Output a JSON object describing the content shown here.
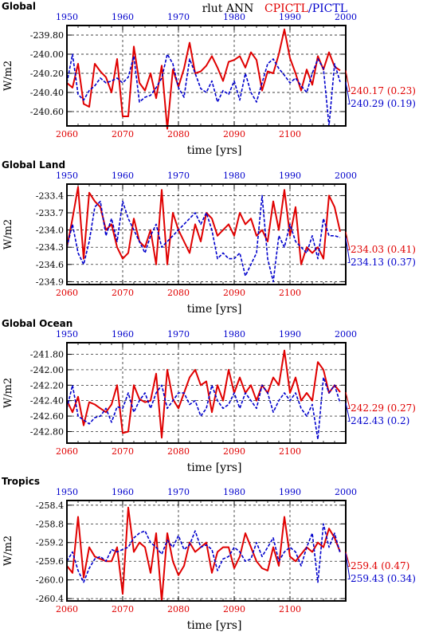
{
  "header": {
    "variable": "rlut ANN",
    "legend_exp": "CPICTL",
    "legend_sep": "/",
    "legend_ctl": "PICTL"
  },
  "colors": {
    "exp": "#e00000",
    "ctl": "#0000cc"
  },
  "chart_data": [
    {
      "type": "line",
      "title": "Global",
      "ylabel": "W/m2",
      "xlabel": "time [yrs]",
      "bottom_ticks": [
        "2060",
        "2070",
        "2080",
        "2090",
        "2100"
      ],
      "top_ticks": [
        "1950",
        "1960",
        "1970",
        "1980",
        "1990",
        "2000"
      ],
      "y_ticks": [
        "-239.80",
        "-240.00",
        "-240.20",
        "-240.40",
        "-240.60"
      ],
      "y_tick_values": [
        -239.8,
        -240.0,
        -240.2,
        -240.4,
        -240.6
      ],
      "ylim": [
        -240.75,
        -239.7
      ],
      "grid": true,
      "x": [
        2060,
        2061,
        2062,
        2063,
        2064,
        2065,
        2066,
        2067,
        2068,
        2069,
        2070,
        2071,
        2072,
        2073,
        2074,
        2075,
        2076,
        2077,
        2078,
        2079,
        2080,
        2081,
        2082,
        2083,
        2084,
        2085,
        2086,
        2087,
        2088,
        2089,
        2090,
        2091,
        2092,
        2093,
        2094,
        2095,
        2096,
        2097,
        2098,
        2099,
        2100,
        2101,
        2102,
        2103,
        2104,
        2105,
        2106,
        2107,
        2108,
        2109
      ],
      "series": [
        {
          "name": "CPICTL",
          "color": "#e00000",
          "style": "solid",
          "values": [
            -240.3,
            -240.35,
            -240.1,
            -240.52,
            -240.55,
            -240.1,
            -240.18,
            -240.24,
            -240.4,
            -240.05,
            -240.65,
            -240.65,
            -239.92,
            -240.3,
            -240.38,
            -240.2,
            -240.46,
            -240.12,
            -240.78,
            -240.16,
            -240.34,
            -240.15,
            -239.88,
            -240.2,
            -240.18,
            -240.12,
            -240.02,
            -240.14,
            -240.28,
            -240.08,
            -240.06,
            -240.02,
            -240.14,
            -239.98,
            -240.06,
            -240.38,
            -240.18,
            -240.2,
            -240.0,
            -239.74,
            -240.04,
            -240.2,
            -240.38,
            -240.16,
            -240.32,
            -240.02,
            -240.16,
            -239.98,
            -240.13,
            -240.17
          ],
          "end_label": "-240.17 (0.23)"
        },
        {
          "name": "PICTL",
          "color": "#0000cc",
          "style": "dashed",
          "values": [
            -240.3,
            -240.0,
            -240.42,
            -240.48,
            -240.38,
            -240.33,
            -240.25,
            -240.3,
            -240.28,
            -240.25,
            -240.3,
            -240.24,
            -240.02,
            -240.5,
            -240.45,
            -240.43,
            -240.35,
            -240.25,
            -240.0,
            -240.1,
            -240.35,
            -240.45,
            -240.05,
            -240.2,
            -240.36,
            -240.4,
            -240.28,
            -240.5,
            -240.38,
            -240.42,
            -240.28,
            -240.48,
            -240.2,
            -240.4,
            -240.5,
            -240.3,
            -240.1,
            -240.05,
            -240.15,
            -240.22,
            -240.3,
            -240.25,
            -240.33,
            -240.4,
            -240.2,
            -240.05,
            -240.15,
            -240.75,
            -240.1,
            -240.29
          ],
          "end_label": "-240.29 (0.19)"
        }
      ]
    },
    {
      "type": "line",
      "title": "Global Land",
      "ylabel": "W/m2",
      "xlabel": "time [yrs]",
      "bottom_ticks": [
        "2060",
        "2070",
        "2080",
        "2090",
        "2100"
      ],
      "top_ticks": [
        "1950",
        "1960",
        "1970",
        "1980",
        "1990",
        "2000"
      ],
      "y_ticks": [
        "-233.4",
        "-233.7",
        "-234.0",
        "-234.3",
        "-234.6",
        "-234.9"
      ],
      "y_tick_values": [
        -233.4,
        -233.7,
        -234.0,
        -234.3,
        -234.6,
        -234.9
      ],
      "ylim": [
        -234.95,
        -233.2
      ],
      "grid": true,
      "x": [
        2060,
        2061,
        2062,
        2063,
        2064,
        2065,
        2066,
        2067,
        2068,
        2069,
        2070,
        2071,
        2072,
        2073,
        2074,
        2075,
        2076,
        2077,
        2078,
        2079,
        2080,
        2081,
        2082,
        2083,
        2084,
        2085,
        2086,
        2087,
        2088,
        2089,
        2090,
        2091,
        2092,
        2093,
        2094,
        2095,
        2096,
        2097,
        2098,
        2099,
        2100,
        2101,
        2102,
        2103,
        2104,
        2105,
        2106,
        2107,
        2108,
        2109
      ],
      "series": [
        {
          "name": "CPICTL",
          "color": "#e00000",
          "style": "solid",
          "values": [
            -234.3,
            -233.8,
            -233.25,
            -234.5,
            -233.35,
            -233.5,
            -233.6,
            -234.0,
            -233.9,
            -234.3,
            -234.5,
            -234.4,
            -233.8,
            -234.2,
            -234.3,
            -234.0,
            -234.6,
            -233.3,
            -234.6,
            -233.7,
            -234.0,
            -234.2,
            -234.4,
            -233.9,
            -234.2,
            -233.7,
            -233.8,
            -234.1,
            -234.0,
            -233.9,
            -234.1,
            -233.7,
            -233.9,
            -233.8,
            -234.1,
            -234.0,
            -234.2,
            -233.5,
            -234.0,
            -233.3,
            -234.1,
            -233.6,
            -234.6,
            -234.3,
            -234.4,
            -234.3,
            -234.5,
            -233.4,
            -233.6,
            -234.03
          ],
          "end_label": "-234.03 (0.41)"
        },
        {
          "name": "PICTL",
          "color": "#0000cc",
          "style": "dashed",
          "values": [
            -234.3,
            -233.9,
            -234.4,
            -234.6,
            -234.2,
            -233.6,
            -233.5,
            -234.1,
            -233.8,
            -234.2,
            -233.5,
            -233.8,
            -234.0,
            -234.2,
            -234.4,
            -234.1,
            -233.9,
            -234.3,
            -234.2,
            -234.1,
            -234.0,
            -233.9,
            -233.8,
            -233.7,
            -233.9,
            -233.7,
            -234.0,
            -234.5,
            -234.4,
            -234.5,
            -234.5,
            -234.4,
            -234.8,
            -234.6,
            -234.4,
            -233.4,
            -234.5,
            -234.9,
            -234.1,
            -234.3,
            -233.9,
            -234.2,
            -234.3,
            -234.4,
            -234.1,
            -234.5,
            -233.8,
            -234.1,
            -234.1,
            -234.13
          ],
          "end_label": "-234.13 (0.37)"
        }
      ]
    },
    {
      "type": "line",
      "title": "Global Ocean",
      "ylabel": "W/m2",
      "xlabel": "time [yrs]",
      "bottom_ticks": [
        "2060",
        "2070",
        "2080",
        "2090",
        "2100"
      ],
      "top_ticks": [
        "1950",
        "1960",
        "1970",
        "1980",
        "1990",
        "2000"
      ],
      "y_ticks": [
        "-241.80",
        "-242.00",
        "-242.20",
        "-242.40",
        "-242.60",
        "-242.80"
      ],
      "y_tick_values": [
        -241.8,
        -242.0,
        -242.2,
        -242.4,
        -242.6,
        -242.8
      ],
      "ylim": [
        -242.95,
        -241.65
      ],
      "grid": true,
      "x": [
        2060,
        2061,
        2062,
        2063,
        2064,
        2065,
        2066,
        2067,
        2068,
        2069,
        2070,
        2071,
        2072,
        2073,
        2074,
        2075,
        2076,
        2077,
        2078,
        2079,
        2080,
        2081,
        2082,
        2083,
        2084,
        2085,
        2086,
        2087,
        2088,
        2089,
        2090,
        2091,
        2092,
        2093,
        2094,
        2095,
        2096,
        2097,
        2098,
        2099,
        2100,
        2101,
        2102,
        2103,
        2104,
        2105,
        2106,
        2107,
        2108,
        2109
      ],
      "series": [
        {
          "name": "CPICTL",
          "color": "#e00000",
          "style": "solid",
          "values": [
            -242.4,
            -242.55,
            -242.35,
            -242.72,
            -242.42,
            -242.45,
            -242.5,
            -242.55,
            -242.45,
            -242.2,
            -242.82,
            -242.8,
            -242.2,
            -242.38,
            -242.42,
            -242.4,
            -242.05,
            -242.88,
            -242.0,
            -242.38,
            -242.5,
            -242.3,
            -242.1,
            -242.0,
            -242.2,
            -242.15,
            -242.55,
            -242.2,
            -242.4,
            -242.0,
            -242.3,
            -242.1,
            -242.3,
            -242.2,
            -242.4,
            -242.2,
            -242.3,
            -242.1,
            -242.2,
            -241.75,
            -242.3,
            -242.1,
            -242.4,
            -242.3,
            -242.4,
            -241.9,
            -242.0,
            -242.3,
            -242.2,
            -242.29
          ],
          "end_label": "-242.29 (0.27)"
        },
        {
          "name": "PICTL",
          "color": "#0000cc",
          "style": "dashed",
          "values": [
            -242.5,
            -242.2,
            -242.6,
            -242.65,
            -242.7,
            -242.62,
            -242.6,
            -242.5,
            -242.68,
            -242.48,
            -242.5,
            -242.3,
            -242.55,
            -242.4,
            -242.3,
            -242.5,
            -242.3,
            -242.2,
            -242.5,
            -242.4,
            -242.3,
            -242.3,
            -242.45,
            -242.4,
            -242.6,
            -242.5,
            -242.2,
            -242.4,
            -242.5,
            -242.45,
            -242.3,
            -242.5,
            -242.3,
            -242.4,
            -242.5,
            -242.2,
            -242.3,
            -242.55,
            -242.4,
            -242.3,
            -242.4,
            -242.3,
            -242.5,
            -242.6,
            -242.45,
            -242.9,
            -242.1,
            -242.3,
            -242.2,
            -242.43
          ],
          "end_label": "-242.43 (0.2)"
        }
      ]
    },
    {
      "type": "line",
      "title": "Tropics",
      "ylabel": "W/m2",
      "xlabel": "time [yrs]",
      "bottom_ticks": [
        "2060",
        "2070",
        "2080",
        "2090",
        "2100"
      ],
      "top_ticks": [
        "1950",
        "1960",
        "1970",
        "1980",
        "1990",
        "2000"
      ],
      "y_ticks": [
        "-258.4",
        "-258.8",
        "-259.2",
        "-259.6",
        "-260.0",
        "-260.4"
      ],
      "y_tick_values": [
        -258.4,
        -258.8,
        -259.2,
        -259.6,
        -260.0,
        -260.4
      ],
      "ylim": [
        -260.45,
        -258.3
      ],
      "grid": true,
      "x": [
        2060,
        2061,
        2062,
        2063,
        2064,
        2065,
        2066,
        2067,
        2068,
        2069,
        2070,
        2071,
        2072,
        2073,
        2074,
        2075,
        2076,
        2077,
        2078,
        2079,
        2080,
        2081,
        2082,
        2083,
        2084,
        2085,
        2086,
        2087,
        2088,
        2089,
        2090,
        2091,
        2092,
        2093,
        2094,
        2095,
        2096,
        2097,
        2098,
        2099,
        2100,
        2101,
        2102,
        2103,
        2104,
        2105,
        2106,
        2107,
        2108,
        2109
      ],
      "series": [
        {
          "name": "CPICTL",
          "color": "#e00000",
          "style": "solid",
          "values": [
            -259.7,
            -259.85,
            -258.65,
            -259.95,
            -259.3,
            -259.5,
            -259.55,
            -259.6,
            -259.6,
            -259.3,
            -260.3,
            -258.45,
            -259.4,
            -259.2,
            -259.3,
            -259.85,
            -259.0,
            -260.45,
            -259.0,
            -259.6,
            -259.9,
            -259.7,
            -259.2,
            -259.4,
            -259.3,
            -259.2,
            -259.85,
            -259.4,
            -259.3,
            -259.3,
            -259.75,
            -259.5,
            -259.0,
            -259.3,
            -259.6,
            -259.75,
            -259.8,
            -259.3,
            -259.7,
            -258.65,
            -259.5,
            -259.6,
            -259.45,
            -259.3,
            -259.4,
            -259.2,
            -259.3,
            -258.9,
            -259.1,
            -259.4
          ],
          "end_label": "-259.4 (0.47)"
        },
        {
          "name": "PICTL",
          "color": "#0000cc",
          "style": "dashed",
          "values": [
            -259.6,
            -259.4,
            -259.8,
            -260.05,
            -259.75,
            -259.55,
            -259.5,
            -259.6,
            -259.35,
            -259.4,
            -259.35,
            -259.3,
            -259.1,
            -259.0,
            -258.95,
            -259.2,
            -259.3,
            -259.45,
            -259.15,
            -259.3,
            -259.05,
            -259.35,
            -259.25,
            -258.95,
            -259.3,
            -259.25,
            -259.35,
            -259.8,
            -259.55,
            -259.5,
            -259.3,
            -259.4,
            -259.6,
            -259.55,
            -259.2,
            -259.5,
            -259.3,
            -259.1,
            -259.6,
            -259.4,
            -259.3,
            -259.4,
            -259.7,
            -259.3,
            -259.0,
            -260.05,
            -258.8,
            -259.3,
            -259.0,
            -259.43
          ],
          "end_label": "-259.43 (0.34)"
        }
      ]
    }
  ]
}
